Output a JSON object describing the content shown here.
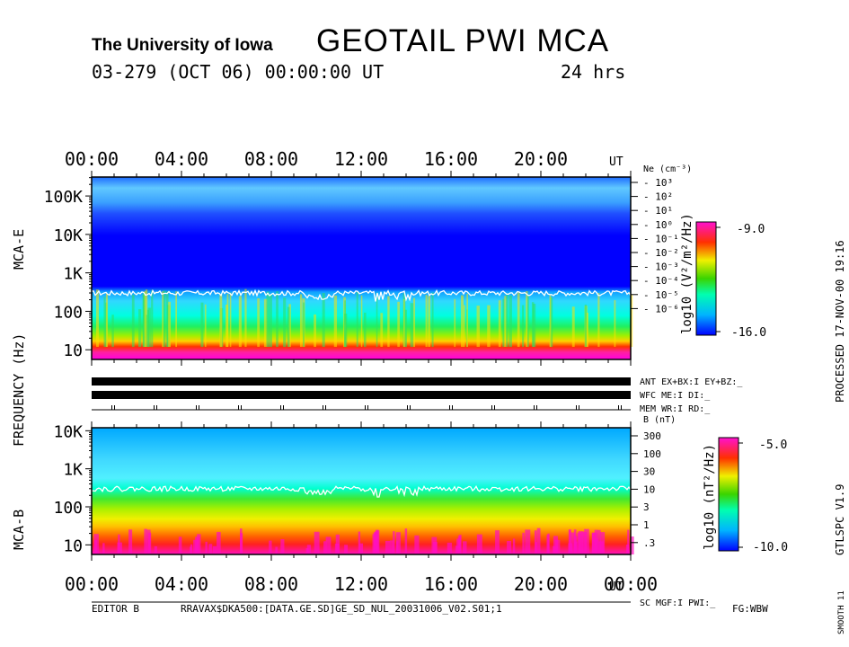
{
  "header": {
    "institution": "The University of Iowa",
    "title": "GEOTAIL PWI MCA",
    "date_line": "03-279 (OCT 06) 00:00:00 UT",
    "duration": "24 hrs"
  },
  "side_labels": {
    "processed": "PROCESSED 17-NOV-00  19:16",
    "version": "GTLSPC   V1.9",
    "smooth": "SMOOTH 11"
  },
  "footer": {
    "editor": "EDITOR B",
    "file": "RRAVAX$DKA500:[DATA.GE.SD]GE_SD_NUL_20031006_V02.S01;1",
    "fg": "FG:WBW"
  },
  "status_labels": {
    "ant": "ANT EX+BX:I EY+BZ:_",
    "wfc": "WFC ME:I    DI:_",
    "mem": "MEM WR:I    RD:_",
    "sc": "SC MGF:I   PWI:_"
  },
  "chart_data": [
    {
      "type": "heatmap",
      "name": "MCA-E",
      "ylabel": "MCA-E",
      "shared_ylabel": "FREQUENCY (Hz)",
      "x_ticks": [
        "00:00",
        "04:00",
        "08:00",
        "12:00",
        "16:00",
        "20:00"
      ],
      "x_unit": "UT",
      "xlim_hours": [
        0,
        24
      ],
      "y_ticks": [
        "10",
        "100",
        "1K",
        "10K",
        "100K"
      ],
      "y_scale": "log",
      "ylim_hz": [
        5.6,
        311000
      ],
      "right_axis": {
        "label": "Ne (cm⁻³)",
        "ticks": [
          "10³",
          "10²",
          "10¹",
          "10⁰",
          "10⁻¹",
          "10⁻²",
          "10⁻³",
          "10⁻⁴",
          "10⁻⁵",
          "10⁻⁶"
        ]
      },
      "colorbar": {
        "label": "log10 (V²/m²/Hz)",
        "max_label": "-9.0",
        "min_label": "-16.0",
        "max": -9.0,
        "min": -16.0
      },
      "trace": {
        "description": "electron cyclotron frequency line",
        "typical_hz": 300
      }
    },
    {
      "type": "heatmap",
      "name": "MCA-B",
      "ylabel": "MCA-B",
      "x_ticks": [
        "00:00",
        "04:00",
        "08:00",
        "12:00",
        "16:00",
        "20:00",
        "00:00"
      ],
      "x_unit": "UT",
      "xlim_hours": [
        0,
        24
      ],
      "y_ticks": [
        "10",
        "100",
        "1K",
        "10K"
      ],
      "y_scale": "log",
      "ylim_hz": [
        5.6,
        12000
      ],
      "right_axis": {
        "label": "B (nT)",
        "ticks": [
          "300",
          "100",
          "30",
          "10",
          "3",
          "1",
          ".3"
        ]
      },
      "colorbar": {
        "label": "log10 (nT²/Hz)",
        "max_label": "-5.0",
        "min_label": "-10.0",
        "max": -5.0,
        "min": -10.0
      },
      "trace": {
        "description": "electron cyclotron frequency line",
        "typical_hz": 300
      }
    }
  ]
}
